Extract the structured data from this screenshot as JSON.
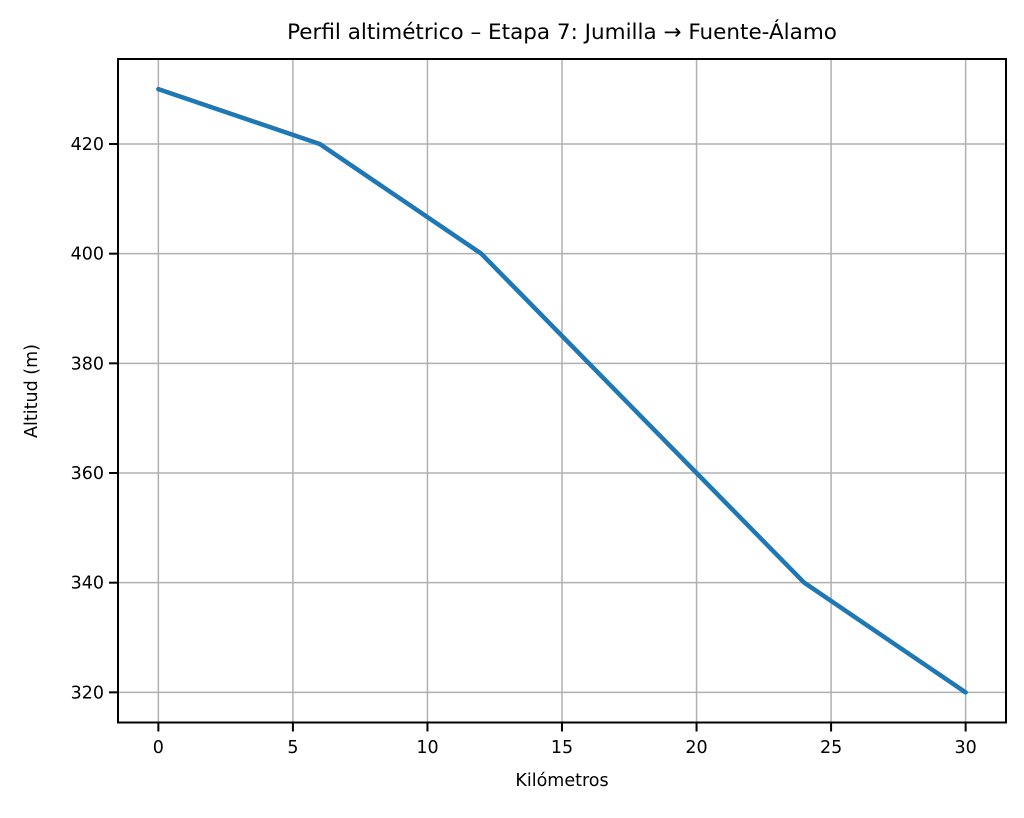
{
  "chart_data": {
    "type": "line",
    "title": "Perfil altimétrico – Etapa 7: Jumilla → Fuente-Álamo",
    "xlabel": "Kilómetros",
    "ylabel": "Altitud (m)",
    "x": [
      0,
      6,
      12,
      20,
      24,
      30
    ],
    "y": [
      430,
      420,
      400,
      360,
      340,
      320
    ],
    "xticks": [
      0,
      5,
      10,
      15,
      20,
      25,
      30
    ],
    "yticks": [
      320,
      340,
      360,
      380,
      400,
      420
    ],
    "xlim": [
      -1.5,
      31.5
    ],
    "ylim": [
      314.5,
      435.5
    ],
    "grid": true,
    "legend_position": "none",
    "line_color": "#1f77b4",
    "grid_color": "#b0b0b0",
    "axis_color": "#000000",
    "background_color": "#ffffff"
  }
}
